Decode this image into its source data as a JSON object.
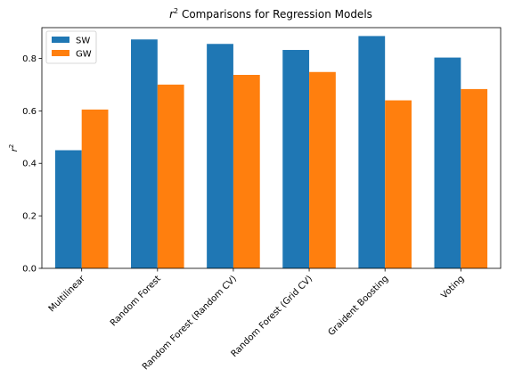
{
  "chart_data": {
    "type": "bar",
    "title": "r² Comparisons for Regression Models",
    "xlabel": "",
    "ylabel": "r²",
    "categories": [
      "Multilinear",
      "Random Forest",
      "Random Forest (Random CV)",
      "Random Forest (Grid CV)",
      "Graident Boosting",
      "Voting"
    ],
    "series": [
      {
        "name": "SW",
        "color": "#1f77b4",
        "values": [
          0.45,
          0.872,
          0.855,
          0.832,
          0.885,
          0.803
        ]
      },
      {
        "name": "GW",
        "color": "#ff7f0e",
        "values": [
          0.605,
          0.7,
          0.737,
          0.748,
          0.64,
          0.683
        ]
      }
    ],
    "ylim": [
      0,
      0.917
    ],
    "yticks": [
      "0.0",
      "0.2",
      "0.4",
      "0.6",
      "0.8"
    ],
    "grid": false,
    "legend_position": "top-left"
  }
}
